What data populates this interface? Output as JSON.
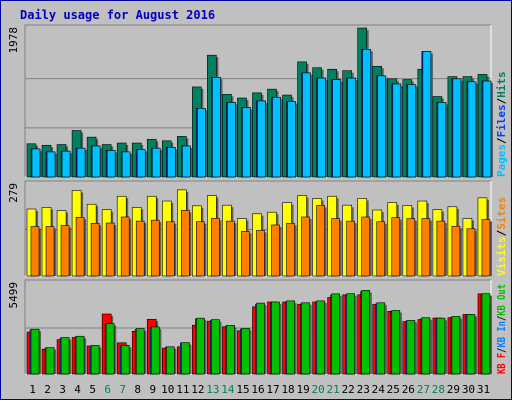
{
  "title": "Daily usage for August 2016",
  "colors": {
    "background": "#C0C0C0",
    "border": "#0000A0",
    "title": "#0000C0",
    "grid": "#808080",
    "pages": "#00C0FF",
    "files": "#0040FF",
    "hits": "#008060",
    "visits": "#FFFF00",
    "sites": "#FF8000",
    "kb_f": "#FF0000",
    "kb_in": "#0080FF",
    "kb_out": "#00C000",
    "weekend_day": "#008060",
    "weekday": "#000000"
  },
  "chart_data": [
    {
      "type": "bar",
      "name": "hits-files-pages",
      "ymax_label": "1978",
      "ylim": [
        0,
        1978
      ],
      "legend": [
        "Pages",
        "/",
        "Files",
        "/",
        "Hits"
      ],
      "categories": [
        "1",
        "2",
        "3",
        "4",
        "5",
        "6",
        "7",
        "8",
        "9",
        "10",
        "11",
        "12",
        "13",
        "14",
        "15",
        "16",
        "17",
        "18",
        "19",
        "20",
        "21",
        "22",
        "23",
        "24",
        "25",
        "26",
        "27",
        "28",
        "29",
        "30",
        "31"
      ],
      "series": [
        {
          "name": "Hits",
          "values": [
            450,
            430,
            440,
            630,
            540,
            440,
            460,
            460,
            510,
            490,
            550,
            1220,
            1650,
            1120,
            1070,
            1140,
            1190,
            1110,
            1560,
            1480,
            1460,
            1440,
            2030,
            1500,
            1330,
            1320,
            1460,
            1090,
            1360,
            1360,
            1390
          ]
        },
        {
          "name": "Pages",
          "values": [
            380,
            340,
            350,
            390,
            420,
            360,
            340,
            370,
            390,
            400,
            420,
            930,
            1350,
            1010,
            940,
            1030,
            1080,
            1020,
            1410,
            1340,
            1320,
            1340,
            1730,
            1370,
            1260,
            1250,
            1700,
            1010,
            1330,
            1290,
            1300
          ]
        }
      ]
    },
    {
      "type": "bar",
      "name": "visits-sites",
      "ymax_label": "279",
      "ylim": [
        0,
        279
      ],
      "legend": [
        "Visits",
        "/",
        "Sites"
      ],
      "categories": [
        "1",
        "2",
        "3",
        "4",
        "5",
        "6",
        "7",
        "8",
        "9",
        "10",
        "11",
        "12",
        "13",
        "14",
        "15",
        "16",
        "17",
        "18",
        "19",
        "20",
        "21",
        "22",
        "23",
        "24",
        "25",
        "26",
        "27",
        "28",
        "29",
        "30",
        "31"
      ],
      "series": [
        {
          "name": "Visits",
          "values": [
            210,
            215,
            205,
            268,
            225,
            208,
            250,
            215,
            250,
            235,
            270,
            220,
            252,
            222,
            180,
            195,
            200,
            230,
            252,
            243,
            250,
            222,
            243,
            207,
            230,
            221,
            235,
            208,
            217,
            180,
            245
          ]
        },
        {
          "name": "Sites",
          "values": [
            155,
            155,
            158,
            184,
            165,
            166,
            185,
            172,
            175,
            170,
            206,
            170,
            181,
            172,
            140,
            143,
            160,
            165,
            185,
            221,
            180,
            172,
            185,
            170,
            183,
            180,
            180,
            172,
            156,
            148,
            177
          ]
        }
      ]
    },
    {
      "type": "bar",
      "name": "kbytes",
      "ymax_label": "5499",
      "ylim": [
        0,
        5499
      ],
      "legend": [
        "KB F",
        "/",
        "KB In",
        "/",
        "KB Out"
      ],
      "categories": [
        "1",
        "2",
        "3",
        "4",
        "5",
        "6",
        "7",
        "8",
        "9",
        "10",
        "11",
        "12",
        "13",
        "14",
        "15",
        "16",
        "17",
        "18",
        "19",
        "20",
        "21",
        "22",
        "23",
        "24",
        "25",
        "26",
        "27",
        "28",
        "29",
        "30",
        "31"
      ],
      "series": [
        {
          "name": "KB F",
          "values": [
            2620,
            1550,
            2150,
            2280,
            1750,
            3750,
            1950,
            2670,
            3420,
            1620,
            1700,
            3050,
            3300,
            2950,
            2700,
            4200,
            4500,
            4500,
            4350,
            4500,
            4780,
            4950,
            4950,
            4350,
            3920,
            3270,
            3400,
            3500,
            3520,
            3720,
            5010
          ]
        },
        {
          "name": "KB Out",
          "values": [
            2800,
            1650,
            2280,
            2360,
            1790,
            3150,
            1790,
            2830,
            2940,
            1700,
            1960,
            3490,
            3400,
            3040,
            2850,
            4430,
            4500,
            4570,
            4450,
            4570,
            5010,
            5020,
            5230,
            4450,
            3970,
            3350,
            3520,
            3490,
            3600,
            3720,
            5020
          ]
        }
      ]
    }
  ],
  "weekend_days": [
    "6",
    "7",
    "13",
    "14",
    "20",
    "21",
    "27",
    "28"
  ]
}
